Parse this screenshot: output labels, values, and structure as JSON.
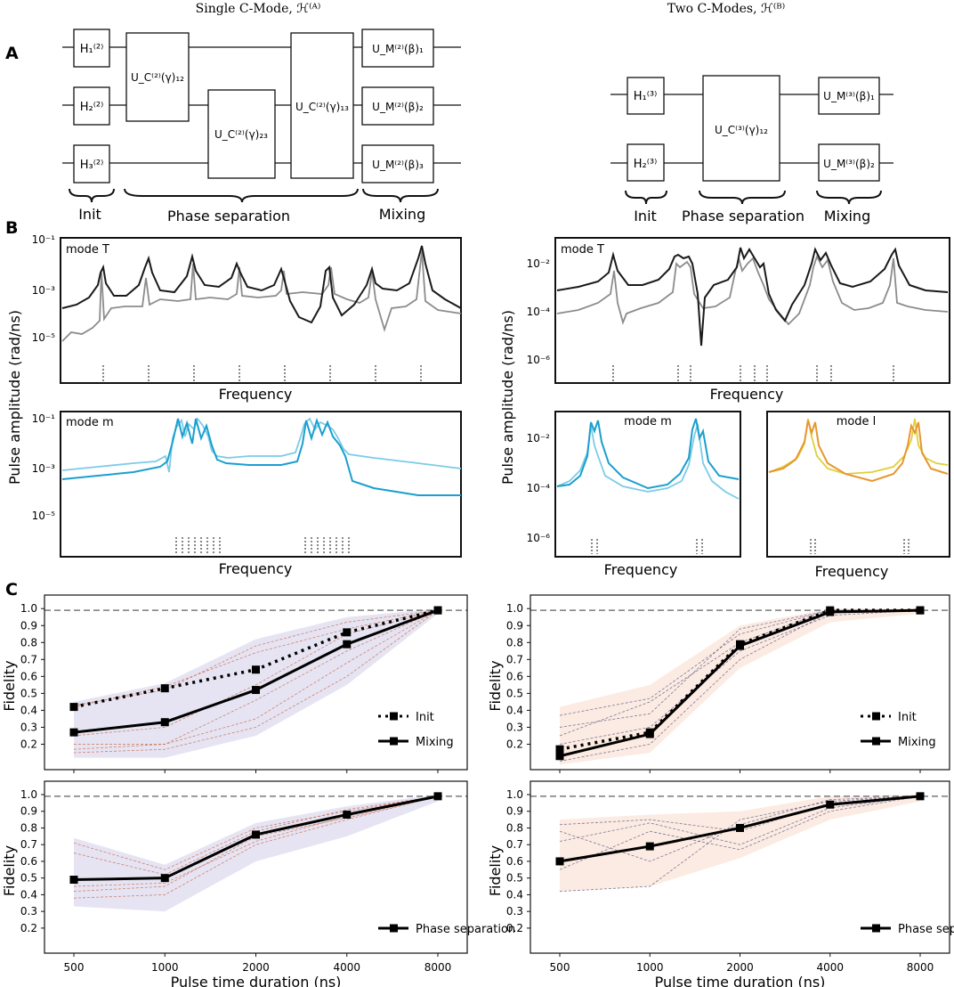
{
  "panels": {
    "a": {
      "letter": "A",
      "left": {
        "title": "Single C-Mode, ℋ⁽ᴬ⁾",
        "init": [
          "H₁⁽²⁾",
          "H₂⁽²⁾",
          "H₃⁽²⁾"
        ],
        "phase": [
          "U_C⁽²⁾(γ)₁₂",
          "U_C⁽²⁾(γ)₂₃",
          "U_C⁽²⁾(γ)₁₃"
        ],
        "mix": [
          "U_M⁽²⁾(β)₁",
          "U_M⁽²⁾(β)₂",
          "U_M⁽²⁾(β)₃"
        ],
        "labels": [
          "Init",
          "Phase separation",
          "Mixing"
        ]
      },
      "right": {
        "title": "Two C-Modes, ℋ⁽ᴮ⁾",
        "init": [
          "H₁⁽³⁾",
          "H₂⁽³⁾"
        ],
        "phase": [
          "U_C⁽³⁾(γ)₁₂"
        ],
        "mix": [
          "U_M⁽³⁾(β)₁",
          "U_M⁽³⁾(β)₂"
        ],
        "labels": [
          "Init",
          "Phase separation",
          "Mixing"
        ]
      }
    },
    "b": {
      "letter": "B",
      "ylabel": "Pulse amplitude (rad/ns)",
      "xlabel": "Frequency"
    },
    "c": {
      "letter": "C",
      "ylabel": "Fidelity",
      "xlabel": "Pulse time duration (ns)"
    }
  },
  "colors": {
    "ink": "#111111",
    "gray": "#8c8c8c",
    "cyan_dark": "#1a9fcf",
    "cyan_light": "#7ccbe6",
    "orange_dark": "#e8962e",
    "yellow_light": "#e0cf3a",
    "purple_band": "#8b86c7",
    "peach_band": "#f0a27a",
    "dashed_ref": "#7a7a7a"
  },
  "chart_data": [
    {
      "id": "B1",
      "type": "line",
      "title": "mode T",
      "xlabel": "Frequency",
      "ylabel": "Pulse amplitude (rad/ns)",
      "yscale": "log",
      "ylim": [
        1e-06,
        0.1
      ],
      "yticks": [
        "10⁻¹",
        "10⁻³",
        "10⁻⁵"
      ],
      "series": [
        {
          "name": "dark",
          "color": "#1a1a1a"
        },
        {
          "name": "light",
          "color": "#8c8c8c"
        }
      ],
      "resonances": 8
    },
    {
      "id": "B2",
      "type": "line",
      "title": "mode m",
      "xlabel": "Frequency",
      "yscale": "log",
      "ylim": [
        1e-06,
        0.1
      ],
      "yticks": [
        "10⁻¹",
        "10⁻³",
        "10⁻⁵"
      ],
      "series": [
        {
          "name": "dark",
          "color": "#1a9fcf"
        },
        {
          "name": "light",
          "color": "#7ccbe6"
        }
      ],
      "resonance_groups": 2
    },
    {
      "id": "B3",
      "type": "line",
      "title": "mode T",
      "xlabel": "Frequency",
      "yscale": "log",
      "ylim": [
        1e-07,
        0.1
      ],
      "yticks": [
        "10⁻²",
        "10⁻⁴",
        "10⁻⁶"
      ],
      "series": [
        {
          "name": "dark",
          "color": "#1a1a1a"
        },
        {
          "name": "light",
          "color": "#8c8c8c"
        }
      ],
      "resonances": 10
    },
    {
      "id": "B4",
      "type": "line",
      "title": "mode m",
      "xlabel": "Frequency",
      "yscale": "log",
      "ylim": [
        1e-07,
        0.1
      ],
      "yticks": [
        "10⁻²",
        "10⁻⁴",
        "10⁻⁶"
      ],
      "series": [
        {
          "name": "dark",
          "color": "#1a9fcf"
        },
        {
          "name": "light",
          "color": "#7ccbe6"
        }
      ]
    },
    {
      "id": "B5",
      "type": "line",
      "title": "mode l",
      "xlabel": "Frequency",
      "yscale": "log",
      "ylim": [
        1e-07,
        0.1
      ],
      "series": [
        {
          "name": "dark",
          "color": "#e8962e"
        },
        {
          "name": "light",
          "color": "#e0cf3a"
        }
      ]
    },
    {
      "id": "C1",
      "type": "line",
      "xlabel": "",
      "ylabel": "Fidelity",
      "xscale": "log2",
      "x": [
        500,
        1000,
        2000,
        4000,
        8000
      ],
      "ylim": [
        0.05,
        1.08
      ],
      "yticks": [
        0.2,
        0.3,
        0.4,
        0.5,
        0.6,
        0.7,
        0.8,
        0.9,
        1.0
      ],
      "reference": 0.99,
      "band_color": "#8b86c7",
      "series": [
        {
          "name": "Init",
          "style": "dotted",
          "values": [
            0.42,
            0.53,
            0.64,
            0.86,
            0.99
          ]
        },
        {
          "name": "Mixing",
          "style": "solid",
          "values": [
            0.27,
            0.33,
            0.52,
            0.79,
            0.99
          ]
        }
      ],
      "legend": "lower-right",
      "traces": [
        [
          0.43,
          0.52,
          0.78,
          0.92,
          0.99
        ],
        [
          0.42,
          0.54,
          0.74,
          0.88,
          0.99
        ],
        [
          0.2,
          0.2,
          0.46,
          0.75,
          0.99
        ],
        [
          0.17,
          0.2,
          0.35,
          0.68,
          0.99
        ],
        [
          0.25,
          0.3,
          0.55,
          0.85,
          0.99
        ],
        [
          0.15,
          0.17,
          0.3,
          0.6,
          0.99
        ]
      ],
      "band": {
        "low": [
          0.12,
          0.12,
          0.25,
          0.55,
          0.97
        ],
        "high": [
          0.45,
          0.56,
          0.82,
          0.95,
          1.0
        ]
      }
    },
    {
      "id": "C2",
      "type": "line",
      "xlabel": "",
      "ylabel": "Fidelity",
      "xscale": "log2",
      "x": [
        500,
        1000,
        2000,
        4000,
        8000
      ],
      "ylim": [
        0.05,
        1.08
      ],
      "reference": 0.99,
      "band_color": "#f0a27a",
      "series": [
        {
          "name": "Init",
          "style": "dotted",
          "values": [
            0.17,
            0.27,
            0.79,
            0.99,
            0.99
          ]
        },
        {
          "name": "Mixing",
          "style": "solid",
          "values": [
            0.13,
            0.26,
            0.78,
            0.98,
            0.99
          ]
        }
      ],
      "legend": "lower-right",
      "traces": [
        [
          0.37,
          0.47,
          0.85,
          0.99,
          0.99
        ],
        [
          0.3,
          0.38,
          0.88,
          0.99,
          0.99
        ],
        [
          0.2,
          0.3,
          0.75,
          0.96,
          0.99
        ],
        [
          0.1,
          0.2,
          0.7,
          0.98,
          0.99
        ],
        [
          0.25,
          0.45,
          0.8,
          0.99,
          0.99
        ]
      ],
      "band": {
        "low": [
          0.08,
          0.15,
          0.65,
          0.92,
          0.97
        ],
        "high": [
          0.42,
          0.55,
          0.9,
          1.0,
          1.0
        ]
      }
    },
    {
      "id": "C3",
      "type": "line",
      "xlabel": "Pulse time duration (ns)",
      "ylabel": "Fidelity",
      "xscale": "log2",
      "x": [
        500,
        1000,
        2000,
        4000,
        8000
      ],
      "xticks": [
        "500",
        "1000",
        "2000",
        "4000",
        "8000"
      ],
      "ylim": [
        0.05,
        1.08
      ],
      "reference": 0.99,
      "band_color": "#8b86c7",
      "series": [
        {
          "name": "Phase separation",
          "style": "solid",
          "values": [
            0.49,
            0.5,
            0.76,
            0.88,
            0.99
          ]
        }
      ],
      "legend": "lower-right",
      "traces": [
        [
          0.71,
          0.55,
          0.8,
          0.9,
          0.99
        ],
        [
          0.65,
          0.52,
          0.78,
          0.91,
          0.99
        ],
        [
          0.45,
          0.47,
          0.72,
          0.87,
          0.99
        ],
        [
          0.42,
          0.45,
          0.75,
          0.86,
          0.99
        ],
        [
          0.38,
          0.4,
          0.7,
          0.85,
          0.99
        ]
      ],
      "band": {
        "low": [
          0.33,
          0.3,
          0.6,
          0.75,
          0.96
        ],
        "high": [
          0.74,
          0.58,
          0.83,
          0.93,
          1.0
        ]
      }
    },
    {
      "id": "C4",
      "type": "line",
      "xlabel": "Pulse time duration (ns)",
      "ylabel": "Fidelity",
      "xscale": "log2",
      "x": [
        500,
        1000,
        2000,
        4000,
        8000
      ],
      "xticks": [
        "500",
        "1000",
        "2000",
        "4000",
        "8000"
      ],
      "ylim": [
        0.05,
        1.08
      ],
      "reference": 0.99,
      "band_color": "#f0a27a",
      "series": [
        {
          "name": "Phase separation",
          "style": "solid",
          "values": [
            0.6,
            0.69,
            0.8,
            0.94,
            0.99
          ]
        }
      ],
      "legend": "lower-right",
      "traces": [
        [
          0.82,
          0.85,
          0.78,
          0.95,
          0.99
        ],
        [
          0.72,
          0.83,
          0.7,
          0.92,
          0.99
        ],
        [
          0.42,
          0.45,
          0.85,
          0.96,
          0.99
        ],
        [
          0.55,
          0.78,
          0.67,
          0.9,
          0.99
        ],
        [
          0.78,
          0.6,
          0.82,
          0.97,
          0.99
        ]
      ],
      "band": {
        "low": [
          0.42,
          0.45,
          0.62,
          0.85,
          0.96
        ],
        "high": [
          0.85,
          0.88,
          0.9,
          0.99,
          1.0
        ]
      }
    }
  ]
}
